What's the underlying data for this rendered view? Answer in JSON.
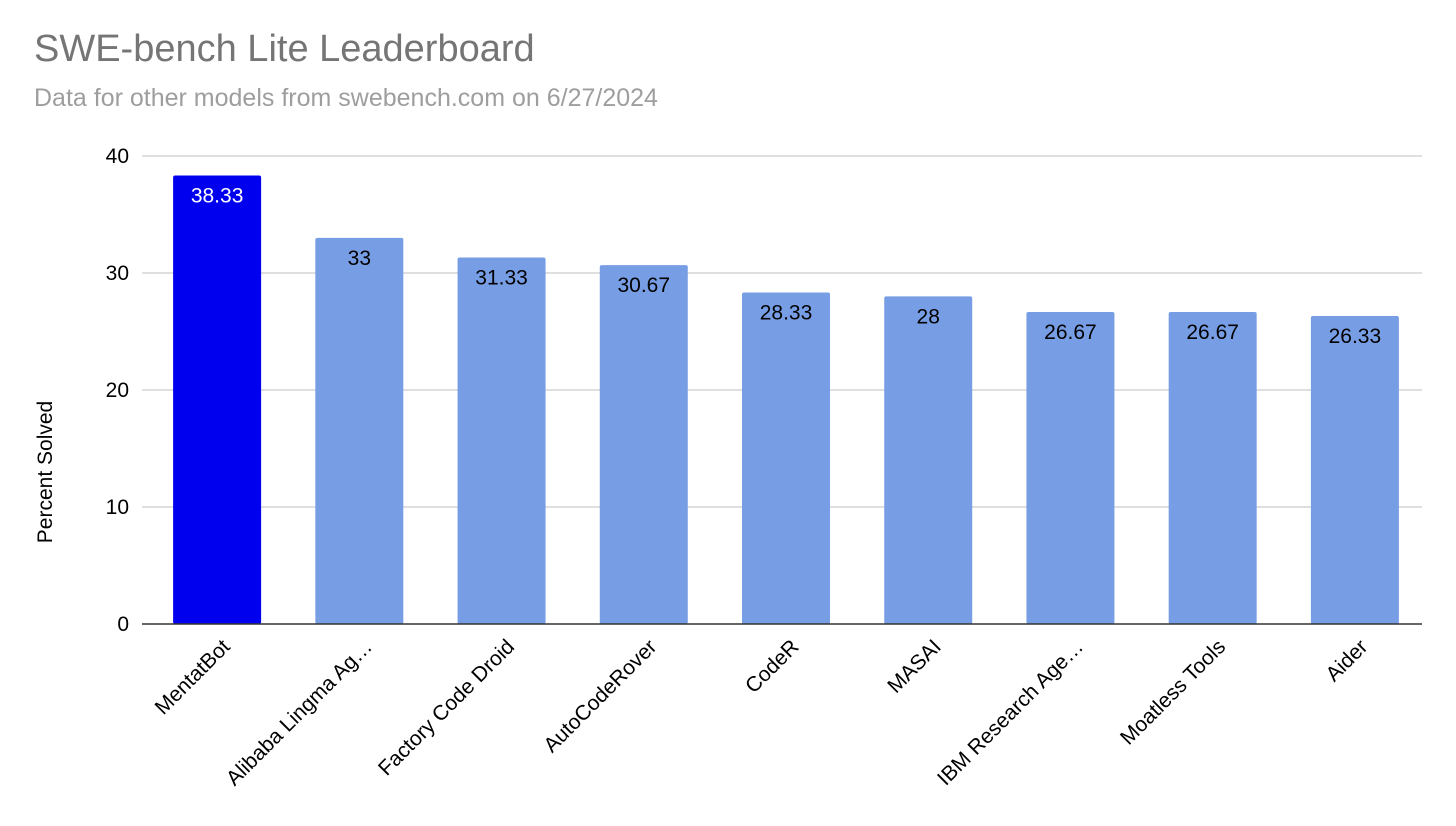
{
  "chart_data": {
    "type": "bar",
    "title": "SWE-bench Lite Leaderboard",
    "subtitle": "Data for other models from swebench.com on 6/27/2024",
    "xlabel": "",
    "ylabel": "Percent Solved",
    "ylim": [
      0,
      40
    ],
    "yticks": [
      0,
      10,
      20,
      30,
      40
    ],
    "grid": true,
    "categories": [
      "MentatBot",
      "Alibaba Lingma Ag…",
      "Factory Code Droid",
      "AutoCodeRover",
      "CodeR",
      "MASAI",
      "IBM Research Age…",
      "Moatless Tools",
      "Aider"
    ],
    "values": [
      38.33,
      33,
      31.33,
      30.67,
      28.33,
      28,
      26.67,
      26.67,
      26.33
    ],
    "data_labels": [
      "38.33",
      "33",
      "31.33",
      "30.67",
      "28.33",
      "28",
      "26.67",
      "26.67",
      "26.33"
    ],
    "colors": {
      "highlight": "#0000ee",
      "bar": "#779ee5",
      "highlight_label": "#ffffff",
      "bar_label": "#000000",
      "grid": "#cccccc",
      "axis": "#333333"
    }
  }
}
